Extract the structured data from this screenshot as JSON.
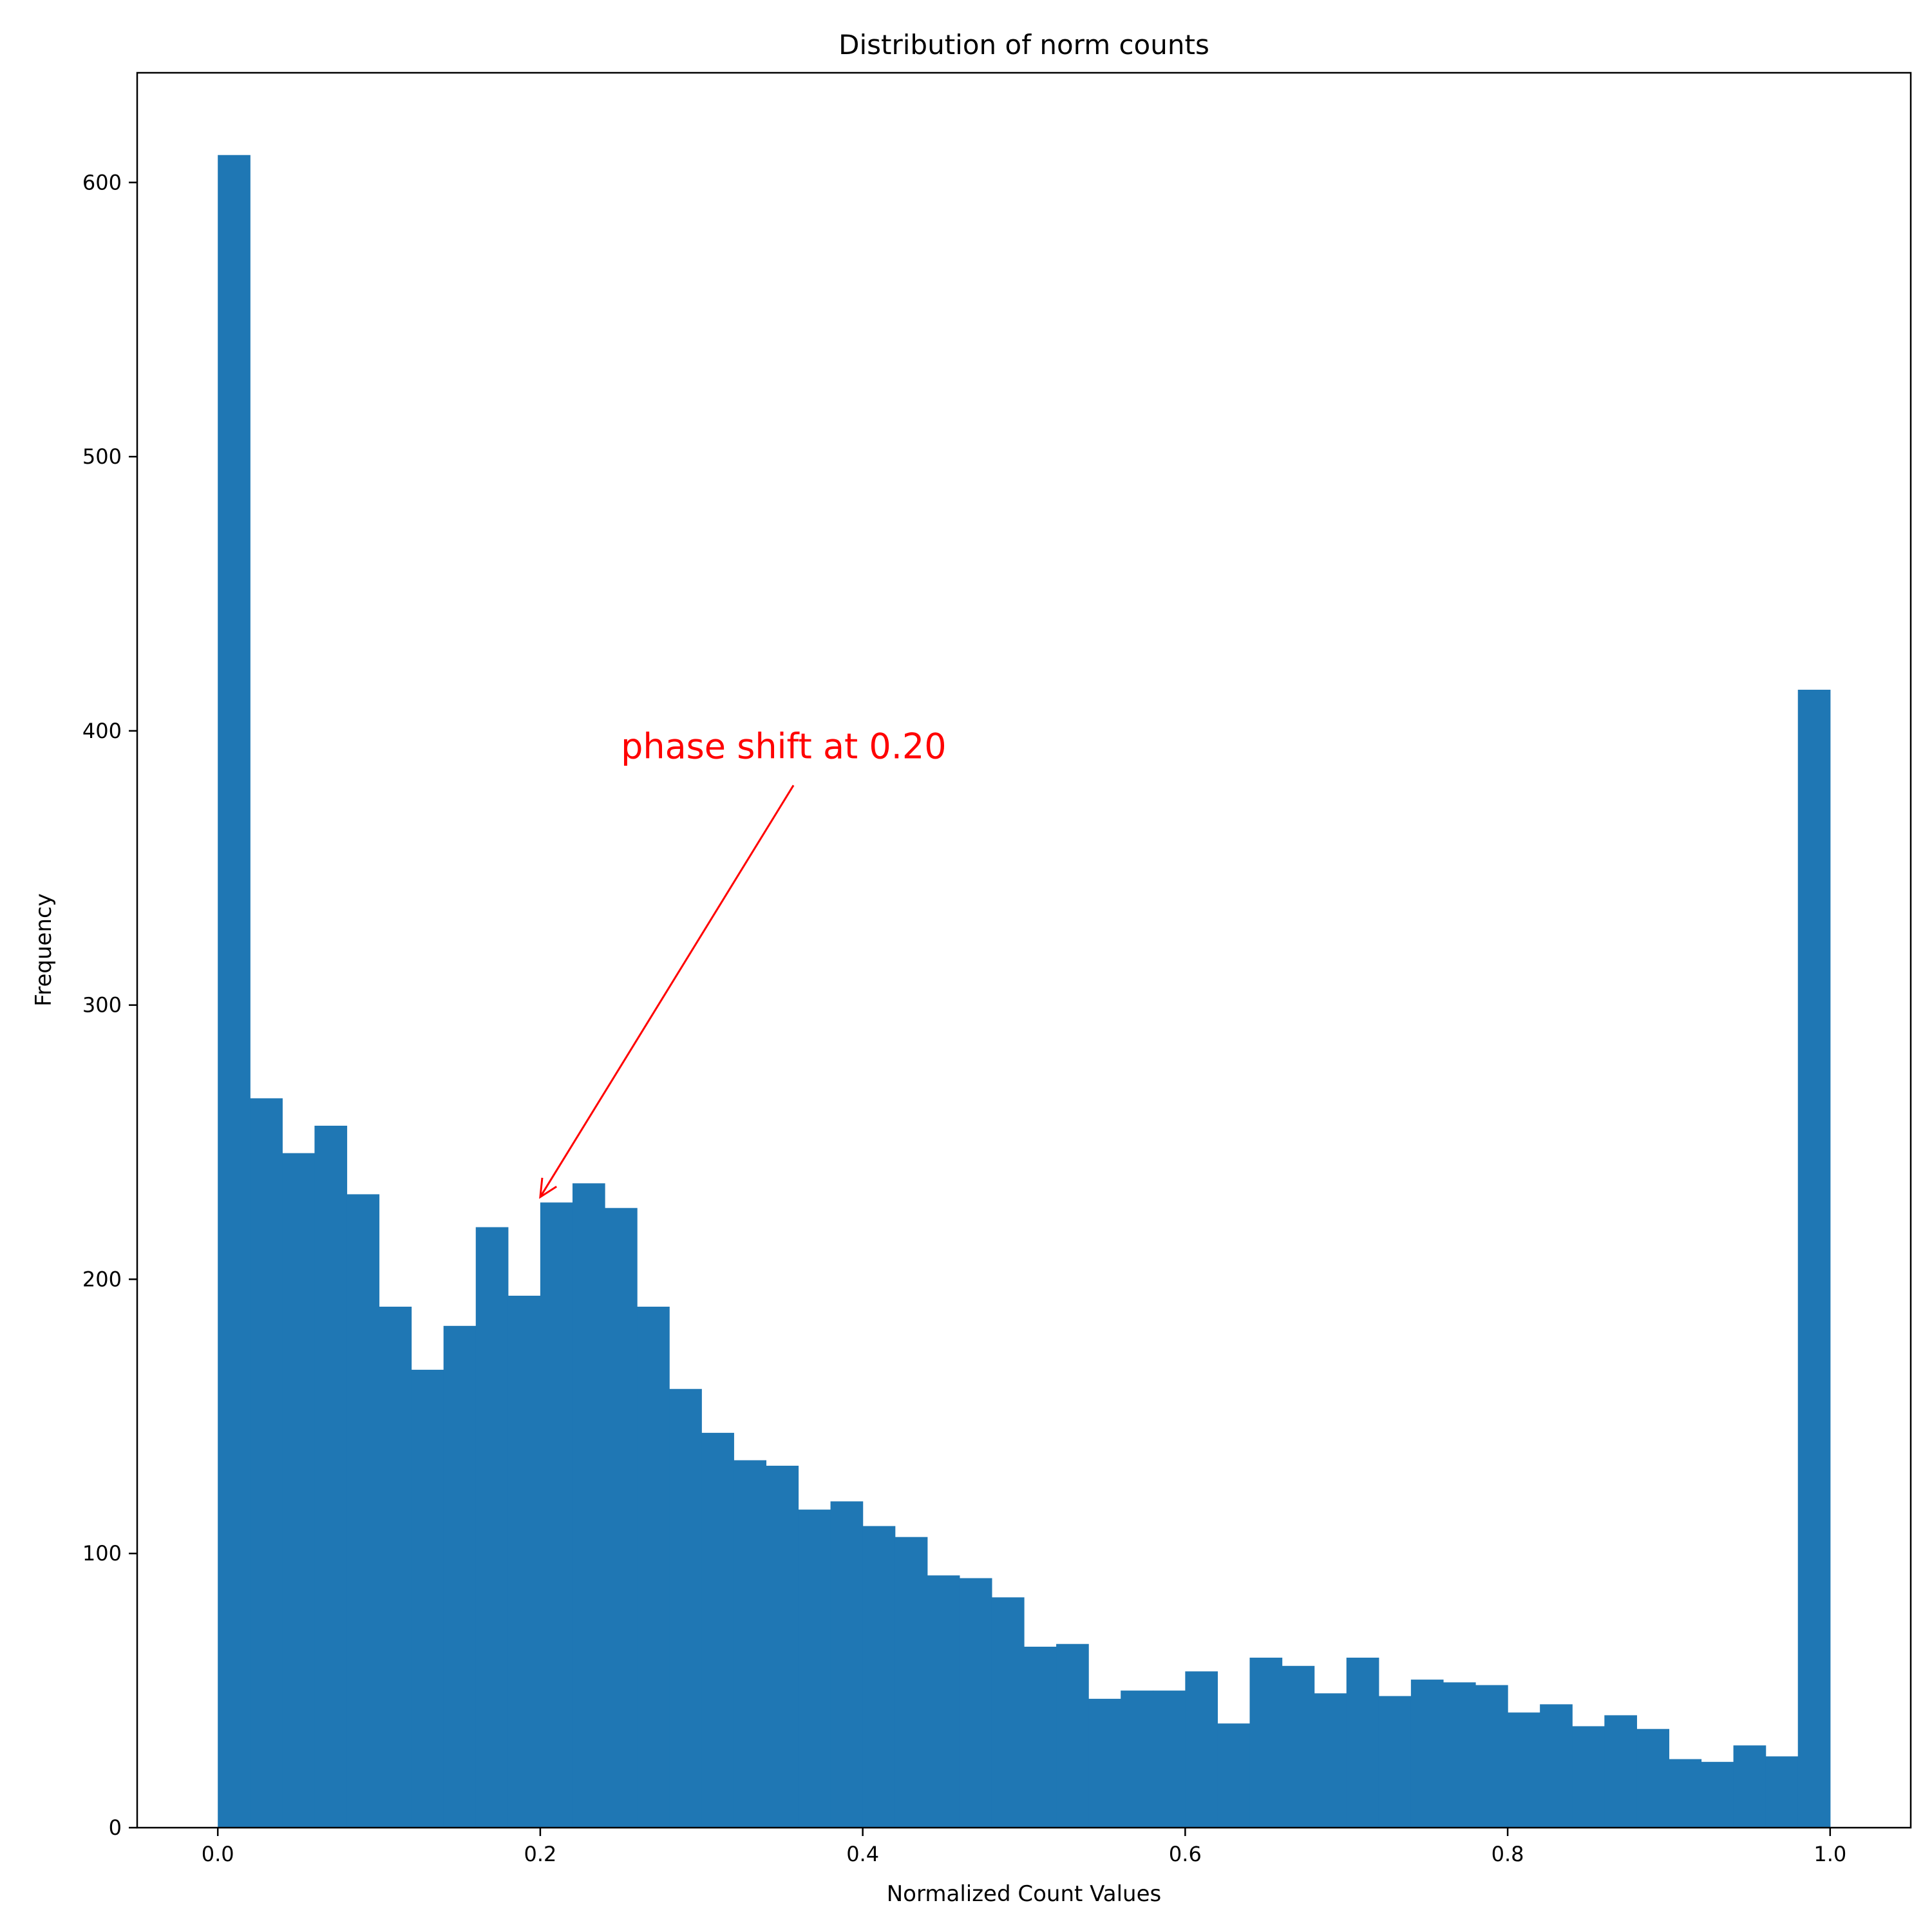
{
  "chart_data": {
    "type": "bar",
    "subtype": "histogram",
    "title": "Distribution of norm counts",
    "xlabel": "Normalized Count Values",
    "ylabel": "Frequency",
    "xlim": [
      -0.05,
      1.05
    ],
    "ylim": [
      0,
      640
    ],
    "xticks": [
      0.0,
      0.2,
      0.4,
      0.6,
      0.8,
      1.0
    ],
    "xtick_labels": [
      "0.0",
      "0.2",
      "0.4",
      "0.6",
      "0.8",
      "1.0"
    ],
    "yticks": [
      0,
      100,
      200,
      300,
      400,
      500,
      600
    ],
    "ytick_labels": [
      "0",
      "100",
      "200",
      "300",
      "400",
      "500",
      "600"
    ],
    "bin_start": 0.0,
    "bin_end": 1.0,
    "bin_count": 50,
    "values": [
      610,
      266,
      246,
      256,
      231,
      190,
      167,
      183,
      219,
      194,
      228,
      235,
      226,
      190,
      160,
      144,
      134,
      132,
      116,
      119,
      110,
      106,
      92,
      91,
      84,
      66,
      67,
      47,
      50,
      50,
      57,
      38,
      62,
      59,
      49,
      62,
      48,
      54,
      53,
      52,
      42,
      45,
      37,
      41,
      36,
      25,
      24,
      30,
      26,
      415
    ],
    "bar_color": "#1f77b4",
    "grid": false,
    "annotations": [
      {
        "text": "phase shift at 0.20",
        "xy": [
          0.2,
          230
        ],
        "xytext": [
          0.25,
          390
        ],
        "color": "#ff0000"
      }
    ]
  }
}
